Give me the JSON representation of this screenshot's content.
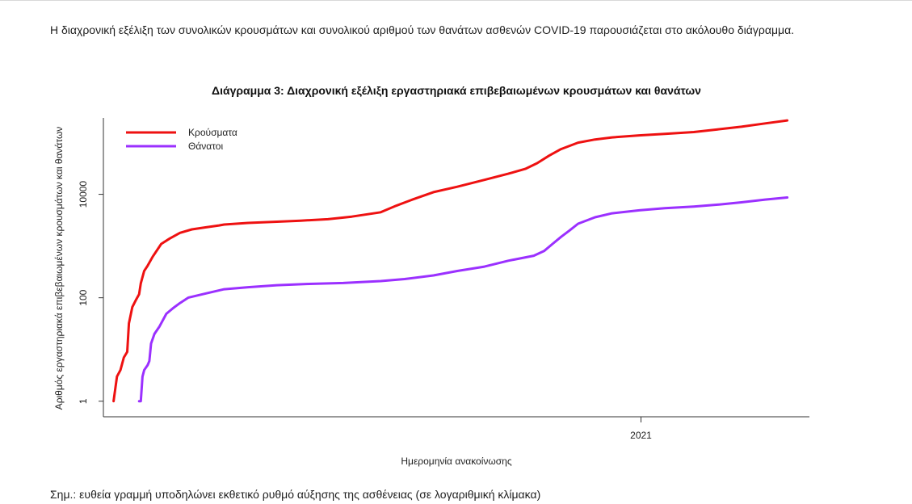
{
  "intro_text": "Η διαχρονική εξέλιξη των συνολικών κρουσμάτων και συνολικού αριθμού των θανάτων ασθενών COVID-19 παρουσιάζεται στο ακόλουθο διάγραμμα.",
  "note_text": "Σημ.: ευθεία γραμμή υποδηλώνει εκθετικό ρυθμό αύξησης της ασθένειας (σε λογαριθμική κλίμακα)",
  "chart_data": {
    "type": "line",
    "title": "Διάγραμμα 3: Διαχρονική εξέλιξη εργαστηριακά επιβεβαιωμένων κρουσμάτων και θανάτων",
    "xlabel": "Ημερομηνία ανακοίνωσης",
    "ylabel": "Αριθμός εργαστηριακά επιβεβαιωμένων κρουσμάτων και θανάτων",
    "y_scale": "log",
    "ylim": [
      0.5,
      300000
    ],
    "xlim": [
      "2020-02-20",
      "2021-04-10"
    ],
    "x_ticks": [
      {
        "date": "2021-01-01",
        "label": "2021"
      }
    ],
    "y_ticks": [
      {
        "value": 1,
        "label": "1"
      },
      {
        "value": 100,
        "label": "100"
      },
      {
        "value": 10000,
        "label": "10000"
      }
    ],
    "grid": false,
    "legend_position": "top-left",
    "series": [
      {
        "name": "Κρούσματα",
        "color": "#ee1111",
        "points": [
          [
            "2020-02-26",
            1
          ],
          [
            "2020-02-28",
            3
          ],
          [
            "2020-03-01",
            4
          ],
          [
            "2020-03-03",
            7
          ],
          [
            "2020-03-05",
            9
          ],
          [
            "2020-03-06",
            32
          ],
          [
            "2020-03-08",
            66
          ],
          [
            "2020-03-10",
            89
          ],
          [
            "2020-03-12",
            117
          ],
          [
            "2020-03-13",
            190
          ],
          [
            "2020-03-15",
            331
          ],
          [
            "2020-03-17",
            418
          ],
          [
            "2020-03-20",
            624
          ],
          [
            "2020-03-25",
            1100
          ],
          [
            "2020-03-30",
            1400
          ],
          [
            "2020-04-05",
            1800
          ],
          [
            "2020-04-12",
            2100
          ],
          [
            "2020-04-20",
            2300
          ],
          [
            "2020-04-28",
            2500
          ],
          [
            "2020-05-01",
            2600
          ],
          [
            "2020-05-15",
            2800
          ],
          [
            "2020-06-01",
            2950
          ],
          [
            "2020-06-15",
            3100
          ],
          [
            "2020-07-01",
            3300
          ],
          [
            "2020-07-15",
            3700
          ],
          [
            "2020-08-01",
            4500
          ],
          [
            "2020-08-10",
            6000
          ],
          [
            "2020-08-20",
            8000
          ],
          [
            "2020-09-01",
            11000
          ],
          [
            "2020-09-15",
            14000
          ],
          [
            "2020-10-01",
            19000
          ],
          [
            "2020-10-15",
            25000
          ],
          [
            "2020-10-25",
            31000
          ],
          [
            "2020-11-01",
            40000
          ],
          [
            "2020-11-08",
            56000
          ],
          [
            "2020-11-15",
            75000
          ],
          [
            "2020-11-25",
            100000
          ],
          [
            "2020-12-05",
            115000
          ],
          [
            "2020-12-15",
            126000
          ],
          [
            "2020-12-31",
            138000
          ],
          [
            "2021-01-15",
            147000
          ],
          [
            "2021-02-01",
            160000
          ],
          [
            "2021-02-15",
            180000
          ],
          [
            "2021-03-01",
            203000
          ],
          [
            "2021-03-15",
            235000
          ],
          [
            "2021-03-28",
            268000
          ]
        ]
      },
      {
        "name": "Θάνατοι",
        "color": "#9b30ff",
        "points": [
          [
            "2020-03-12",
            1
          ],
          [
            "2020-03-13",
            1
          ],
          [
            "2020-03-14",
            3
          ],
          [
            "2020-03-15",
            4
          ],
          [
            "2020-03-17",
            5
          ],
          [
            "2020-03-18",
            6
          ],
          [
            "2020-03-19",
            13
          ],
          [
            "2020-03-21",
            20
          ],
          [
            "2020-03-24",
            28
          ],
          [
            "2020-03-28",
            49
          ],
          [
            "2020-04-01",
            63
          ],
          [
            "2020-04-05",
            79
          ],
          [
            "2020-04-10",
            101
          ],
          [
            "2020-04-20",
            121
          ],
          [
            "2020-05-01",
            146
          ],
          [
            "2020-05-15",
            160
          ],
          [
            "2020-06-01",
            175
          ],
          [
            "2020-06-20",
            185
          ],
          [
            "2020-07-10",
            193
          ],
          [
            "2020-08-01",
            210
          ],
          [
            "2020-08-15",
            230
          ],
          [
            "2020-09-01",
            270
          ],
          [
            "2020-09-15",
            330
          ],
          [
            "2020-10-01",
            400
          ],
          [
            "2020-10-15",
            520
          ],
          [
            "2020-10-30",
            650
          ],
          [
            "2020-11-05",
            800
          ],
          [
            "2020-11-10",
            1100
          ],
          [
            "2020-11-15",
            1500
          ],
          [
            "2020-11-20",
            2000
          ],
          [
            "2020-11-25",
            2700
          ],
          [
            "2020-12-05",
            3600
          ],
          [
            "2020-12-15",
            4300
          ],
          [
            "2020-12-31",
            4900
          ],
          [
            "2021-01-15",
            5400
          ],
          [
            "2021-02-01",
            5800
          ],
          [
            "2021-02-15",
            6300
          ],
          [
            "2021-03-01",
            7000
          ],
          [
            "2021-03-15",
            7900
          ],
          [
            "2021-03-28",
            8700
          ]
        ]
      }
    ]
  }
}
